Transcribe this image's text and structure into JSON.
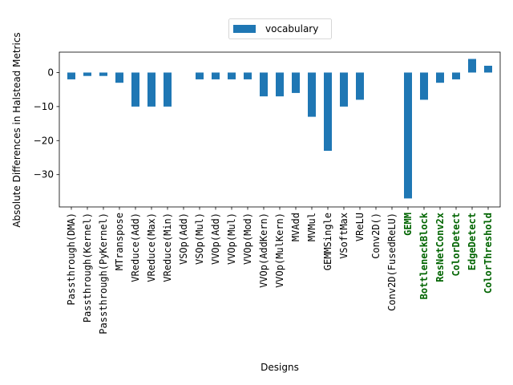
{
  "chart_data": {
    "type": "bar",
    "xlabel": "Designs",
    "ylabel": "Absolute Differences in Halstead Metrics",
    "ylim": [
      -39.5,
      6
    ],
    "yticks": [
      0,
      -10,
      -20,
      -30
    ],
    "grid": false,
    "legend_placement": "top-center",
    "bar_color": "#1f77b4",
    "highlight_color": "#006400",
    "categories": [
      "Passthrough(DMA)",
      "Passthrough(Kernel)",
      "Passthrough(PyKernel)",
      "MTranspose",
      "VReduce(Add)",
      "VReduce(Max)",
      "VReduce(Min)",
      "VSOp(Add)",
      "VSOp(Mul)",
      "VVOp(Add)",
      "VVOp(Mul)",
      "VVOp(Mod)",
      "VVOp(AddKern)",
      "VVOp(MulKern)",
      "MVAdd",
      "MVMul",
      "GEMMSingle",
      "VSoftMax",
      "VReLU",
      "Conv2D()",
      "Conv2D(FusedReLU)",
      "GEMM",
      "BottleneckBlock",
      "ResNetConv2x",
      "ColorDetect",
      "EdgeDetect",
      "ColorThreshold"
    ],
    "highlighted": [
      "GEMM",
      "BottleneckBlock",
      "ResNetConv2x",
      "ColorDetect",
      "EdgeDetect",
      "ColorThreshold"
    ],
    "series": [
      {
        "name": "vocabulary",
        "values": [
          -2,
          -1,
          -1,
          -3,
          -10,
          -10,
          -10,
          0,
          -2,
          -2,
          -2,
          -2,
          -7,
          -7,
          -6,
          -13,
          -23,
          -10,
          -8,
          0,
          0,
          -37,
          -8,
          -3,
          -2,
          4,
          2
        ]
      }
    ]
  }
}
